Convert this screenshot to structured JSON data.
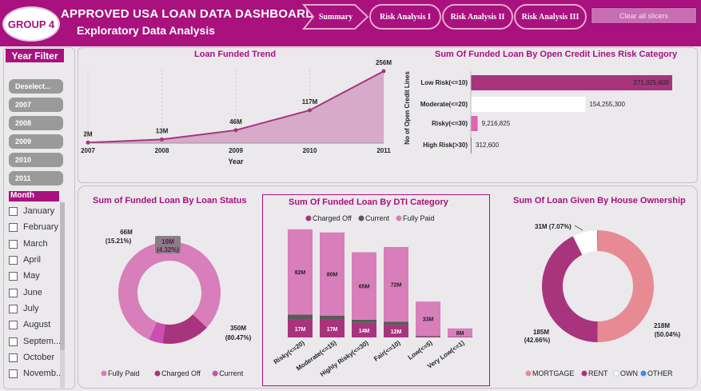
{
  "header": {
    "logo": "GROUP 4",
    "title": "APPROVED USA LOAN DATA DASHBOARD",
    "subtitle": "Exploratory Data Analysis",
    "nav": [
      "Summary",
      "Risk Analysis I",
      "Risk Analysis II",
      "Risk Analysis III"
    ],
    "clear_label": "Clear all slicers"
  },
  "year_filter": {
    "title": "Year Filter",
    "items": [
      "Deselect...",
      "2007",
      "2008",
      "2009",
      "2010",
      "2011"
    ]
  },
  "month_filter": {
    "title": "Month",
    "items": [
      "January",
      "February",
      "March",
      "April",
      "May",
      "June",
      "July",
      "August",
      "Septem...",
      "October",
      "Novemb..."
    ]
  },
  "chart_data": [
    {
      "type": "area",
      "title": "Loan Funded Trend",
      "x": [
        "2007",
        "2008",
        "2009",
        "2010",
        "2011"
      ],
      "values": [
        2,
        13,
        46,
        117,
        256
      ],
      "data_labels": [
        "2M",
        "13M",
        "46M",
        "117M",
        "256M"
      ],
      "xlabel": "Year",
      "color": "#a8347e"
    },
    {
      "type": "bar",
      "orientation": "horizontal",
      "title": "Sum Of Funded Loan By Open Credit Lines Risk Category",
      "ylabel": "No of Open Credit Lines",
      "categories": [
        "Low Risk(<=10)",
        "Moderate(<=20)",
        "Risky(<=30)",
        "High Risk(>30)"
      ],
      "values": [
        271025600,
        154255300,
        9216825,
        312600
      ],
      "data_labels": [
        "271,025,600",
        "154,255,300",
        "9,216,825",
        "312,600"
      ],
      "colors": [
        "#a8347e",
        "#ffffff",
        "#e064b4",
        "#a8347e"
      ]
    },
    {
      "type": "pie",
      "donut": true,
      "title": "Sum of Funded Loan By Loan Status",
      "slices": [
        {
          "name": "Fully Paid",
          "value": 350,
          "label": "350M",
          "pct": "(80.47%)",
          "color": "#d87eba"
        },
        {
          "name": "Charged Off",
          "value": 66,
          "label": "66M",
          "pct": "(15.21%)",
          "color": "#a8347e"
        },
        {
          "name": "Current",
          "value": 19,
          "label": "19M",
          "pct": "(4.32%)",
          "color": "#c94fb0"
        }
      ],
      "legend": [
        "Fully Paid",
        "Charged Off",
        "Current"
      ]
    },
    {
      "type": "bar",
      "stacked": true,
      "title": "Sum Of Funded Loan By DTI Category",
      "categories": [
        "Risky(<=20)",
        "Moderate(<=15)",
        "Highly Risky(<=30)",
        "Fair(<=10)",
        "Low(<=5)",
        "Very Low(<=1)"
      ],
      "series": [
        {
          "name": "Charged Off",
          "values": [
            17,
            17,
            14,
            12,
            1,
            0.5
          ],
          "color": "#a8347e"
        },
        {
          "name": "Current",
          "values": [
            5,
            4,
            3,
            3,
            0.5,
            0.2
          ],
          "color": "#5a5a5a"
        },
        {
          "name": "Fully Paid",
          "values": [
            82,
            80,
            65,
            72,
            33,
            8
          ],
          "color": "#d87eba"
        }
      ],
      "labels_charged_off": [
        "17M",
        "17M",
        "14M",
        "12M",
        "",
        ""
      ],
      "labels_fully_paid": [
        "82M",
        "80M",
        "65M",
        "72M",
        "33M",
        "8M"
      ],
      "legend": [
        "Charged Off",
        "Current",
        "Fully Paid"
      ]
    },
    {
      "type": "pie",
      "donut": true,
      "title": "Sum Of Loan Given By House Ownership",
      "slices": [
        {
          "name": "MORTGAGE",
          "value": 218,
          "label": "218M",
          "pct": "(50.04%)",
          "color": "#e88a94"
        },
        {
          "name": "RENT",
          "value": 185,
          "label": "185M",
          "pct": "(42.66%)",
          "color": "#a8347e"
        },
        {
          "name": "OWN",
          "value": 31,
          "label": "31M (7.07%)",
          "pct": "",
          "color": "#ffffff"
        },
        {
          "name": "OTHER",
          "value": 1,
          "label": "",
          "pct": "",
          "color": "#3b8ee8"
        }
      ],
      "legend": [
        "MORTGAGE",
        "RENT",
        "OWN",
        "OTHER"
      ]
    }
  ]
}
